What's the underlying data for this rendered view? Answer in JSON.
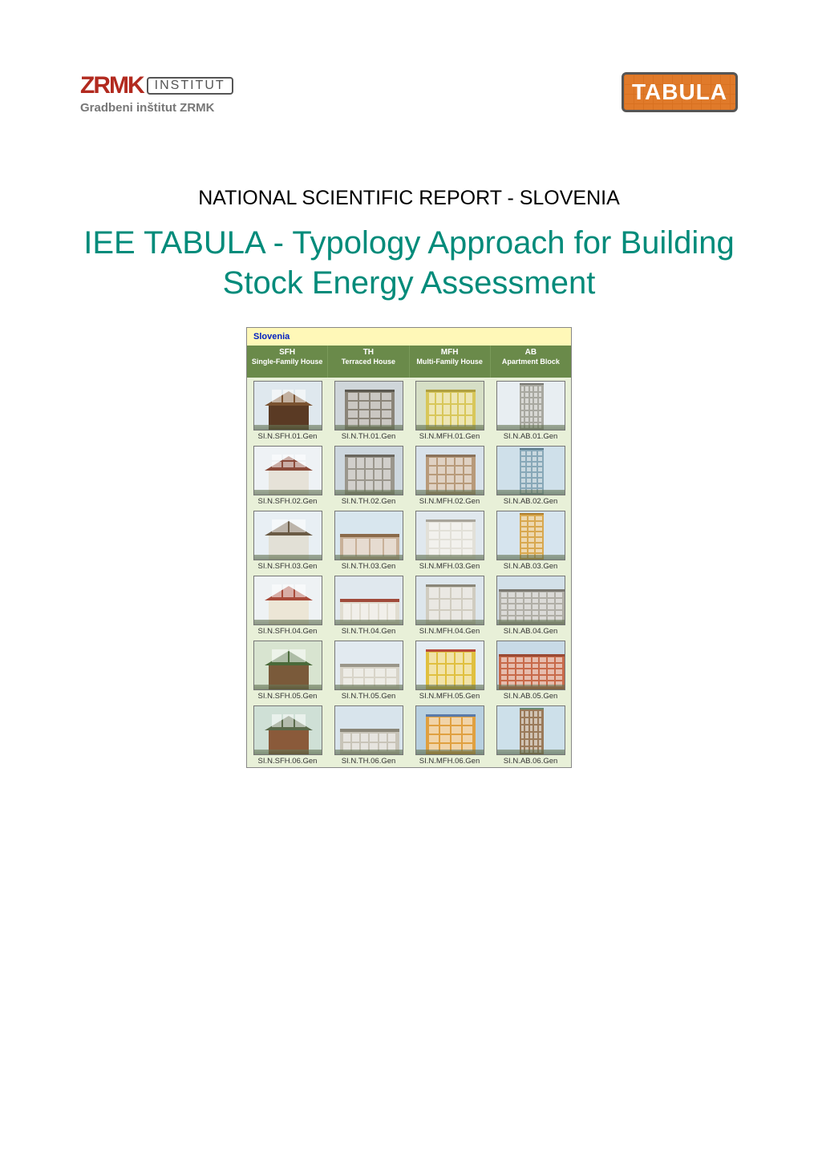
{
  "logos": {
    "zrmk_mark": "ZRMK",
    "zrmk_box": "INSTITUT",
    "zrmk_sub": "Gradbeni inštitut ZRMK",
    "tabula": "TABULA"
  },
  "headings": {
    "subtitle": "NATIONAL SCIENTIFIC REPORT - SLOVENIA",
    "title": "IEE TABULA - Typology Approach for Building Stock Energy Assessment"
  },
  "matrix": {
    "country": "Slovenia",
    "columns": [
      {
        "code": "SFH",
        "label": "Single-Family House"
      },
      {
        "code": "TH",
        "label": "Terraced House"
      },
      {
        "code": "MFH",
        "label": "Multi-Family House"
      },
      {
        "code": "AB",
        "label": "Apartment Block"
      }
    ],
    "rows": [
      {
        "cells": [
          {
            "caption": "SI.N.SFH.01.Gen",
            "sky": "#dfe8ee",
            "bldg": "#5a3a24",
            "accent": "#7a5230",
            "shape": "house",
            "wcols": 3,
            "wrows": 1
          },
          {
            "caption": "SI.N.TH.01.Gen",
            "sky": "#cfd6da",
            "bldg": "#8a8478",
            "accent": "#5a574e",
            "shape": "block",
            "wcols": 4,
            "wrows": 4
          },
          {
            "caption": "SI.N.MFH.01.Gen",
            "sky": "#d6dfc6",
            "bldg": "#d8c75a",
            "accent": "#b0a040",
            "shape": "block",
            "wcols": 6,
            "wrows": 3
          },
          {
            "caption": "SI.N.AB.01.Gen",
            "sky": "#e8eef2",
            "bldg": "#a8a8a0",
            "accent": "#7a7a74",
            "shape": "tower",
            "wcols": 5,
            "wrows": 7
          }
        ]
      },
      {
        "cells": [
          {
            "caption": "SI.N.SFH.02.Gen",
            "sky": "#eef2f5",
            "bldg": "#e6e2d8",
            "accent": "#8a4a3a",
            "shape": "house",
            "wcols": 3,
            "wrows": 2
          },
          {
            "caption": "SI.N.TH.02.Gen",
            "sky": "#cdd7de",
            "bldg": "#9a968c",
            "accent": "#6a665e",
            "shape": "block",
            "wcols": 5,
            "wrows": 3
          },
          {
            "caption": "SI.N.MFH.02.Gen",
            "sky": "#d8e2ea",
            "bldg": "#b89a7a",
            "accent": "#8a725a",
            "shape": "block",
            "wcols": 5,
            "wrows": 4
          },
          {
            "caption": "SI.N.AB.02.Gen",
            "sky": "#cfe0ea",
            "bldg": "#88a8b8",
            "accent": "#5a7a8a",
            "shape": "tower",
            "wcols": 4,
            "wrows": 8
          }
        ]
      },
      {
        "cells": [
          {
            "caption": "SI.N.SFH.03.Gen",
            "sky": "#e8eff4",
            "bldg": "#e2e0d6",
            "accent": "#6a5a44",
            "shape": "house",
            "wcols": 2,
            "wrows": 1
          },
          {
            "caption": "SI.N.TH.03.Gen",
            "sky": "#d8e6ee",
            "bldg": "#c8b098",
            "accent": "#8a6a4a",
            "shape": "lowblock",
            "wcols": 4,
            "wrows": 1
          },
          {
            "caption": "SI.N.MFH.03.Gen",
            "sky": "#e0e8ee",
            "bldg": "#e2e0d8",
            "accent": "#a8a49a",
            "shape": "block",
            "wcols": 4,
            "wrows": 4
          },
          {
            "caption": "SI.N.AB.03.Gen",
            "sky": "#d6e4ee",
            "bldg": "#d8a850",
            "accent": "#b08030",
            "shape": "tower",
            "wcols": 3,
            "wrows": 8
          }
        ]
      },
      {
        "cells": [
          {
            "caption": "SI.N.SFH.04.Gen",
            "sky": "#eef2f4",
            "bldg": "#ece6d6",
            "accent": "#a84a3a",
            "shape": "house",
            "wcols": 3,
            "wrows": 1
          },
          {
            "caption": "SI.N.TH.04.Gen",
            "sky": "#e0e8ee",
            "bldg": "#e0dcd0",
            "accent": "#a04a3a",
            "shape": "lowblock",
            "wcols": 6,
            "wrows": 1
          },
          {
            "caption": "SI.N.MFH.04.Gen",
            "sky": "#dde6ec",
            "bldg": "#d0ccc0",
            "accent": "#8a8678",
            "shape": "block",
            "wcols": 4,
            "wrows": 3
          },
          {
            "caption": "SI.N.AB.04.Gen",
            "sky": "#d2e0e8",
            "bldg": "#b0aea6",
            "accent": "#7a7870",
            "shape": "wideblock",
            "wcols": 8,
            "wrows": 5
          }
        ]
      },
      {
        "cells": [
          {
            "caption": "SI.N.SFH.05.Gen",
            "sky": "#d8e4d0",
            "bldg": "#7a5a3a",
            "accent": "#4a6a3a",
            "shape": "house",
            "wcols": 2,
            "wrows": 1
          },
          {
            "caption": "SI.N.TH.05.Gen",
            "sky": "#e2eaf0",
            "bldg": "#d8d4c8",
            "accent": "#9a968a",
            "shape": "lowblock",
            "wcols": 5,
            "wrows": 2
          },
          {
            "caption": "SI.N.MFH.05.Gen",
            "sky": "#e4ecf2",
            "bldg": "#e0c040",
            "accent": "#b84a3a",
            "shape": "block",
            "wcols": 5,
            "wrows": 3
          },
          {
            "caption": "SI.N.AB.05.Gen",
            "sky": "#c8dae6",
            "bldg": "#c86a4a",
            "accent": "#9a4a34",
            "shape": "wideblock",
            "wcols": 8,
            "wrows": 5
          }
        ]
      },
      {
        "cells": [
          {
            "caption": "SI.N.SFH.06.Gen",
            "sky": "#cfe0d6",
            "bldg": "#8a5a3a",
            "accent": "#5a6a4a",
            "shape": "house",
            "wcols": 3,
            "wrows": 1
          },
          {
            "caption": "SI.N.TH.06.Gen",
            "sky": "#d8e4ec",
            "bldg": "#c8c4b8",
            "accent": "#8a8678",
            "shape": "lowblock",
            "wcols": 6,
            "wrows": 2
          },
          {
            "caption": "SI.N.MFH.06.Gen",
            "sky": "#b8d0e0",
            "bldg": "#e0a040",
            "accent": "#5a7aa8",
            "shape": "block",
            "wcols": 4,
            "wrows": 4
          },
          {
            "caption": "SI.N.AB.06.Gen",
            "sky": "#cde0ea",
            "bldg": "#9a7a5a",
            "accent": "#6a8a70",
            "shape": "tower",
            "wcols": 5,
            "wrows": 6
          }
        ]
      }
    ]
  },
  "style": {
    "page_bg": "#ffffff",
    "title_color": "#008b7a",
    "subtitle_color": "#000000",
    "matrix_bg": "#e8f0d8",
    "country_bg": "#fff8b8",
    "country_color": "#0020c0",
    "header_bg": "#6a8a4a",
    "header_text": "#ffffff",
    "caption_color": "#333333",
    "tabula_bg": "#e07a2a",
    "zrmk_red": "#b22a1f"
  }
}
